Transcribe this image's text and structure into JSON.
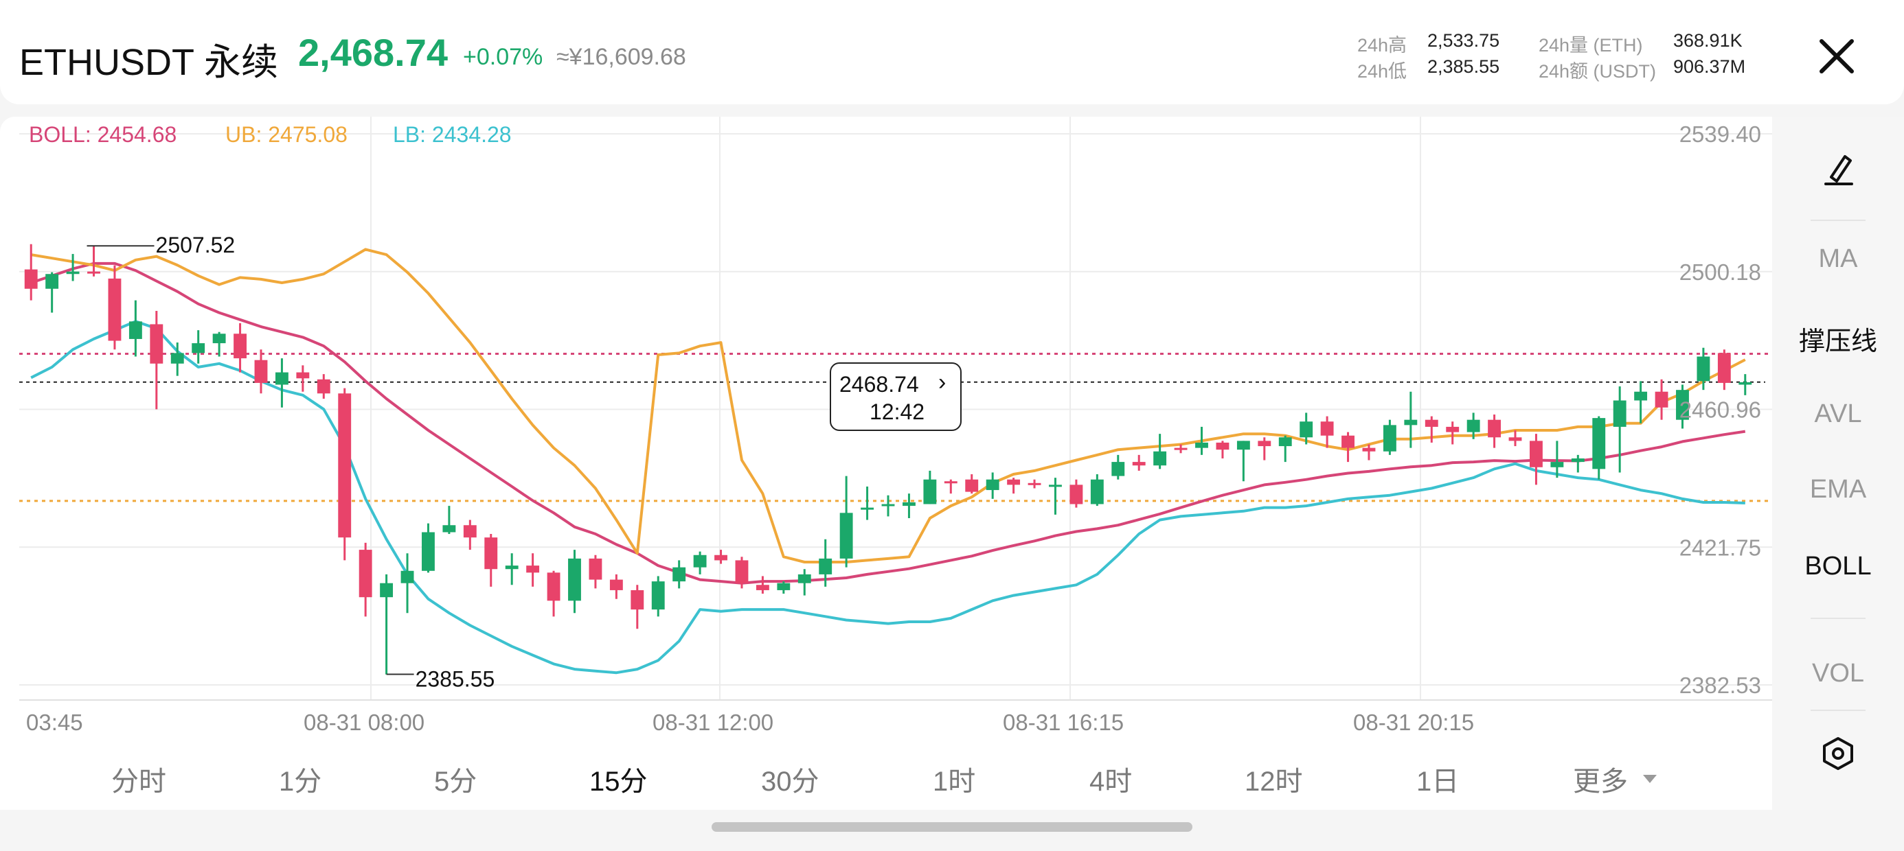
{
  "header": {
    "symbol": "ETHUSDT 永续",
    "price": "2,468.74",
    "change": "+0.07%",
    "cny": "≈¥16,609.68",
    "stats": {
      "high_label": "24h高",
      "high_value": "2,533.75",
      "low_label": "24h低",
      "low_value": "2,385.55",
      "vol_label": "24h量 (ETH)",
      "vol_value": "368.91K",
      "amt_label": "24h额 (USDT)",
      "amt_value": "906.37M"
    }
  },
  "legend": {
    "boll": "BOLL: 2454.68",
    "ub": "UB: 2475.08",
    "lb": "LB: 2434.28"
  },
  "y_axis": [
    "2539.40",
    "2500.18",
    "2460.96",
    "2421.75",
    "2382.53"
  ],
  "x_axis": [
    "03:45",
    "08-31 08:00",
    "08-31 12:00",
    "08-31 16:15",
    "08-31 20:15"
  ],
  "annotations": {
    "high": "2507.52",
    "low": "2385.55"
  },
  "tooltip": {
    "price": "2468.74",
    "time": "12:42",
    "arrow": "›"
  },
  "sidebar": {
    "items": [
      {
        "label": "MA",
        "active": false
      },
      {
        "label": "撑压线",
        "active": true
      },
      {
        "label": "AVL",
        "active": false
      },
      {
        "label": "EMA",
        "active": false
      },
      {
        "label": "BOLL",
        "active": true
      },
      {
        "label": "VOL",
        "active": false
      }
    ]
  },
  "timeframes": [
    {
      "label": "分时",
      "active": false
    },
    {
      "label": "1分",
      "active": false
    },
    {
      "label": "5分",
      "active": false
    },
    {
      "label": "15分",
      "active": true
    },
    {
      "label": "30分",
      "active": false
    },
    {
      "label": "1时",
      "active": false
    },
    {
      "label": "4时",
      "active": false
    },
    {
      "label": "12时",
      "active": false
    },
    {
      "label": "1日",
      "active": false
    },
    {
      "label": "更多",
      "active": false
    }
  ],
  "colors": {
    "up": "#1ba86a",
    "down": "#e8436a",
    "boll": "#d64577",
    "ub": "#f0a83a",
    "lb": "#3cc1cf",
    "support": "#f0a83a",
    "resistance": "#d64577",
    "current": "#222222"
  },
  "chart_data": {
    "type": "candlestick",
    "ylim": [
      2382.53,
      2539.4
    ],
    "current_price": 2468.74,
    "support_line": 2434.9,
    "resistance_line": 2476.8,
    "candles": [
      [
        2500.8,
        2508.0,
        2492.0,
        2495.3
      ],
      [
        2495.3,
        2500.0,
        2488.5,
        2499.5
      ],
      [
        2499.5,
        2505.2,
        2497.5,
        2500.2
      ],
      [
        2500.2,
        2507.5,
        2498.8,
        2500.0
      ],
      [
        2498.2,
        2502.0,
        2478.0,
        2480.5
      ],
      [
        2481.0,
        2492.0,
        2476.0,
        2486.0
      ],
      [
        2485.2,
        2489.0,
        2461.0,
        2474.0
      ],
      [
        2474.0,
        2480.0,
        2470.5,
        2477.0
      ],
      [
        2477.0,
        2483.5,
        2474.0,
        2479.8
      ],
      [
        2479.8,
        2483.0,
        2476.0,
        2482.5
      ],
      [
        2482.5,
        2485.5,
        2471.5,
        2475.5
      ],
      [
        2475.0,
        2478.0,
        2465.5,
        2468.5
      ],
      [
        2468.0,
        2475.5,
        2461.5,
        2471.5
      ],
      [
        2471.5,
        2473.5,
        2466.0,
        2469.8
      ],
      [
        2469.5,
        2471.0,
        2464.0,
        2465.5
      ],
      [
        2465.5,
        2467.0,
        2418.0,
        2424.5
      ],
      [
        2421.0,
        2423.0,
        2402.0,
        2407.5
      ],
      [
        2407.5,
        2414.0,
        2385.5,
        2411.5
      ],
      [
        2411.5,
        2420.0,
        2403.0,
        2415.0
      ],
      [
        2415.0,
        2428.5,
        2414.5,
        2426.0
      ],
      [
        2426.0,
        2433.5,
        2425.5,
        2428.0
      ],
      [
        2428.0,
        2429.5,
        2421.0,
        2424.5
      ],
      [
        2424.5,
        2425.5,
        2410.5,
        2415.5
      ],
      [
        2415.5,
        2420.0,
        2411.0,
        2416.5
      ],
      [
        2416.5,
        2420.0,
        2410.5,
        2414.5
      ],
      [
        2414.5,
        2415.0,
        2402.0,
        2406.5
      ],
      [
        2406.5,
        2421.0,
        2403.0,
        2418.5
      ],
      [
        2418.5,
        2419.5,
        2410.0,
        2412.5
      ],
      [
        2412.5,
        2414.0,
        2407.0,
        2409.5
      ],
      [
        2409.5,
        2411.0,
        2398.5,
        2404.0
      ],
      [
        2404.0,
        2413.5,
        2402.0,
        2412.0
      ],
      [
        2412.0,
        2418.0,
        2410.0,
        2416.0
      ],
      [
        2416.0,
        2420.5,
        2414.0,
        2419.5
      ],
      [
        2419.5,
        2421.0,
        2417.0,
        2418.0
      ],
      [
        2418.0,
        2419.0,
        2410.0,
        2411.5
      ],
      [
        2411.0,
        2413.5,
        2408.5,
        2409.5
      ],
      [
        2409.5,
        2412.0,
        2408.5,
        2411.5
      ],
      [
        2411.5,
        2415.5,
        2408.0,
        2414.0
      ],
      [
        2414.0,
        2424.0,
        2410.5,
        2418.5
      ],
      [
        2418.5,
        2442.0,
        2416.0,
        2431.5
      ],
      [
        2432.5,
        2439.0,
        2429.5,
        2433.0
      ],
      [
        2433.5,
        2436.5,
        2430.5,
        2434.0
      ],
      [
        2433.5,
        2437.0,
        2430.0,
        2434.5
      ],
      [
        2434.0,
        2443.5,
        2434.0,
        2441.0
      ],
      [
        2440.5,
        2441.0,
        2437.0,
        2440.0
      ],
      [
        2441.0,
        2442.5,
        2437.0,
        2437.5
      ],
      [
        2438.0,
        2443.0,
        2435.5,
        2441.0
      ],
      [
        2441.0,
        2441.5,
        2437.0,
        2439.5
      ],
      [
        2440.0,
        2441.0,
        2438.5,
        2439.5
      ],
      [
        2439.5,
        2441.5,
        2431.0,
        2439.5
      ],
      [
        2439.5,
        2441.0,
        2433.0,
        2434.0
      ],
      [
        2434.0,
        2442.5,
        2433.5,
        2441.0
      ],
      [
        2442.0,
        2448.0,
        2441.0,
        2446.0
      ],
      [
        2446.0,
        2448.0,
        2443.5,
        2445.0
      ],
      [
        2445.0,
        2454.0,
        2444.0,
        2449.0
      ],
      [
        2450.0,
        2451.0,
        2448.5,
        2449.5
      ],
      [
        2450.0,
        2456.0,
        2448.0,
        2451.5
      ],
      [
        2451.5,
        2452.0,
        2447.0,
        2449.5
      ],
      [
        2449.5,
        2452.0,
        2440.5,
        2452.0
      ],
      [
        2452.0,
        2453.0,
        2446.5,
        2450.5
      ],
      [
        2450.5,
        2453.5,
        2446.0,
        2453.0
      ],
      [
        2453.0,
        2460.0,
        2451.0,
        2457.5
      ],
      [
        2457.5,
        2459.0,
        2450.0,
        2453.5
      ],
      [
        2453.5,
        2454.5,
        2446.0,
        2450.0
      ],
      [
        2450.0,
        2451.0,
        2446.5,
        2449.0
      ],
      [
        2449.0,
        2458.0,
        2448.0,
        2456.5
      ],
      [
        2456.5,
        2466.0,
        2450.0,
        2458.0
      ],
      [
        2458.0,
        2459.0,
        2451.5,
        2456.0
      ],
      [
        2456.0,
        2457.5,
        2451.0,
        2454.5
      ],
      [
        2454.5,
        2460.0,
        2452.5,
        2458.0
      ],
      [
        2458.0,
        2459.5,
        2450.0,
        2453.0
      ],
      [
        2453.0,
        2455.0,
        2450.5,
        2452.0
      ],
      [
        2452.0,
        2454.0,
        2439.5,
        2444.5
      ],
      [
        2444.5,
        2452.0,
        2441.5,
        2446.0
      ],
      [
        2446.0,
        2448.0,
        2443.0,
        2447.0
      ],
      [
        2444.0,
        2459.0,
        2441.0,
        2458.5
      ],
      [
        2456.0,
        2467.5,
        2443.0,
        2463.5
      ],
      [
        2463.5,
        2469.0,
        2457.0,
        2466.0
      ],
      [
        2466.0,
        2469.5,
        2458.0,
        2461.5
      ],
      [
        2458.0,
        2468.0,
        2455.5,
        2466.5
      ],
      [
        2469.0,
        2478.5,
        2466.5,
        2476.0
      ],
      [
        2477.0,
        2478.0,
        2466.5,
        2468.5
      ],
      [
        2468.0,
        2471.0,
        2465.0,
        2468.7
      ]
    ],
    "boll": [
      2497.0,
      2499.0,
      2501.0,
      2502.5,
      2502.5,
      2500.5,
      2497.5,
      2494.5,
      2491.0,
      2488.5,
      2486.5,
      2484.5,
      2483.0,
      2481.5,
      2479.0,
      2474.5,
      2469.0,
      2464.0,
      2459.5,
      2455.0,
      2451.0,
      2447.0,
      2443.0,
      2439.0,
      2435.0,
      2431.5,
      2427.5,
      2425.5,
      2422.5,
      2420.0,
      2416.5,
      2414.5,
      2412.5,
      2412.0,
      2411.5,
      2412.0,
      2412.0,
      2412.2,
      2412.6,
      2413.0,
      2414.0,
      2414.8,
      2415.6,
      2416.8,
      2418.0,
      2419.2,
      2420.8,
      2422.2,
      2423.5,
      2425.0,
      2426.2,
      2427.0,
      2428.0,
      2429.6,
      2431.2,
      2433.0,
      2434.8,
      2436.5,
      2438.0,
      2439.5,
      2440.2,
      2441.0,
      2442.0,
      2442.8,
      2443.3,
      2444.0,
      2444.6,
      2445.0,
      2445.8,
      2446.0,
      2446.4,
      2446.2,
      2446.5,
      2446.4,
      2446.3,
      2447.0,
      2448.0,
      2449.2,
      2450.3,
      2451.8,
      2452.8,
      2453.8,
      2454.7
    ],
    "ub": [
      2505.0,
      2504.0,
      2503.0,
      2502.0,
      2500.5,
      2503.5,
      2504.5,
      2502.0,
      2499.0,
      2496.5,
      2498.5,
      2498.0,
      2497.0,
      2498.0,
      2499.5,
      2503.0,
      2506.5,
      2505.0,
      2500.0,
      2494.0,
      2487.0,
      2480.0,
      2472.0,
      2464.0,
      2456.5,
      2450.0,
      2445.0,
      2438.5,
      2429.5,
      2420.0,
      2476.5,
      2477.0,
      2479.0,
      2480.0,
      2446.5,
      2437.0,
      2419.0,
      2417.5,
      2417.5,
      2417.5,
      2418.0,
      2418.5,
      2419.0,
      2430.0,
      2433.5,
      2436.0,
      2440.0,
      2442.5,
      2443.5,
      2445.0,
      2446.5,
      2448.0,
      2449.5,
      2450.0,
      2450.5,
      2451.0,
      2452.0,
      2453.0,
      2454.0,
      2454.0,
      2453.5,
      2452.0,
      2450.5,
      2449.5,
      2451.0,
      2452.5,
      2452.5,
      2453.0,
      2453.5,
      2453.5,
      2454.0,
      2455.0,
      2455.0,
      2455.0,
      2456.0,
      2456.0,
      2457.0,
      2457.0,
      2463.0,
      2465.5,
      2469.0,
      2472.0,
      2475.1
    ],
    "lb": [
      2470.0,
      2473.0,
      2478.0,
      2481.0,
      2483.5,
      2486.0,
      2484.0,
      2477.5,
      2473.0,
      2474.0,
      2472.0,
      2469.0,
      2466.5,
      2465.0,
      2461.0,
      2450.5,
      2435.5,
      2424.0,
      2414.0,
      2407.0,
      2403.0,
      2399.5,
      2396.5,
      2393.5,
      2391.0,
      2388.5,
      2387.0,
      2386.5,
      2386.0,
      2387.0,
      2389.5,
      2395.0,
      2404.0,
      2403.5,
      2404.0,
      2404.0,
      2404.0,
      2403.0,
      2402.0,
      2401.0,
      2400.5,
      2400.0,
      2400.5,
      2400.5,
      2401.5,
      2404.0,
      2406.5,
      2408.0,
      2409.0,
      2410.0,
      2411.0,
      2414.0,
      2419.5,
      2425.5,
      2429.5,
      2430.5,
      2431.0,
      2431.5,
      2432.0,
      2433.0,
      2433.0,
      2433.5,
      2434.5,
      2435.5,
      2436.0,
      2436.5,
      2437.5,
      2438.5,
      2440.0,
      2441.5,
      2444.0,
      2445.5,
      2443.5,
      2442.5,
      2441.5,
      2441.0,
      2439.5,
      2438.0,
      2437.0,
      2435.5,
      2434.5,
      2434.5,
      2434.3
    ]
  }
}
